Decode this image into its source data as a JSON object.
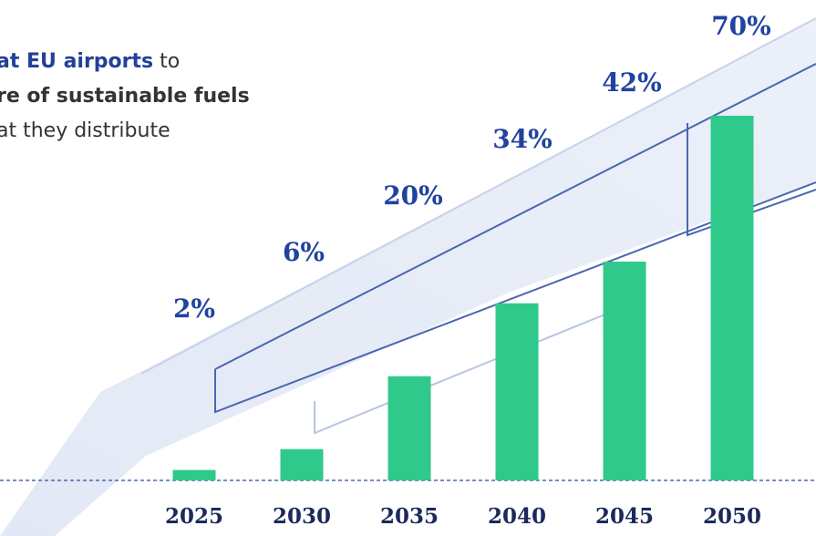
{
  "chart_data": {
    "type": "bar",
    "annotations": [
      "at EU airports",
      "to",
      "re of sustainable fuels",
      "at they distribute"
    ],
    "categories": [
      "2025",
      "2030",
      "2035",
      "2040",
      "2045",
      "2050"
    ],
    "values": [
      2,
      6,
      20,
      34,
      42,
      70
    ],
    "value_labels": [
      "2%",
      "6%",
      "20%",
      "34%",
      "42%",
      "70%"
    ],
    "color": "#2fc98b",
    "ylim": [
      0,
      70
    ]
  }
}
